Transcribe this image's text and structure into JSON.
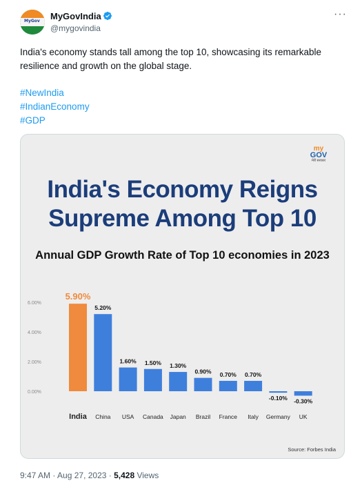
{
  "author": {
    "name": "MyGovIndia",
    "handle": "@mygovindia"
  },
  "tweet": {
    "text": "India's economy stands tall among the top 10, showcasing its remarkable resilience and growth on the global stage.",
    "hashtags": [
      "#NewIndia",
      "#IndianEconomy",
      "#GDP"
    ]
  },
  "media": {
    "logo_top": "my",
    "logo_bottom": "GOV",
    "logo_sub": "मेरी सरकार",
    "headline_line1": "India's Economy Reigns",
    "headline_line2": "Supreme Among Top 10",
    "source": "Source: Forbes India"
  },
  "chart_data": {
    "type": "bar",
    "title": "Annual GDP Growth Rate of Top 10 economies in 2023",
    "categories": [
      "India",
      "China",
      "USA",
      "Canada",
      "Japan",
      "Brazil",
      "France",
      "Italy",
      "Germany",
      "UK"
    ],
    "values": [
      5.9,
      5.2,
      1.6,
      1.5,
      1.3,
      0.9,
      0.7,
      0.7,
      -0.1,
      -0.3
    ],
    "value_labels": [
      "5.90%",
      "5.20%",
      "1.60%",
      "1.50%",
      "1.30%",
      "0.90%",
      "0.70%",
      "0.70%",
      "-0.10%",
      "-0.30%"
    ],
    "y_ticks": [
      0,
      2,
      4,
      6
    ],
    "y_tick_labels": [
      "0.00%",
      "2.00%",
      "4.00%",
      "6.00%"
    ],
    "ylim": [
      -0.5,
      6.2
    ],
    "colors": {
      "highlight": "#f08a3c",
      "default": "#3f7fdc"
    },
    "highlight_index": 0
  },
  "footer": {
    "time": "9:47 AM · Aug 27, 2023 · ",
    "views_count": "5,428",
    "views_label": " Views"
  }
}
